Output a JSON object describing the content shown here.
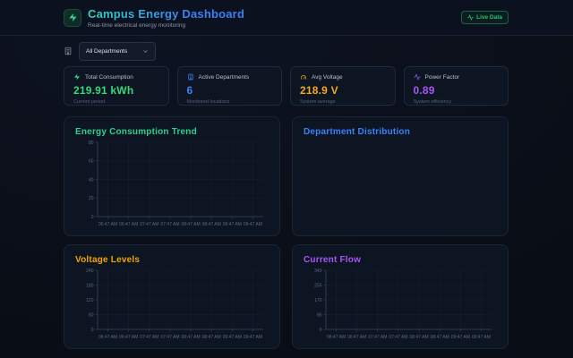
{
  "theme": {
    "page_bg": "#090d15",
    "panel_bg": "#0d1422",
    "panel_border": "#1b2536",
    "axis_color": "#2e3a50",
    "grid_color": "#17202f",
    "tick_text_color": "#5d6a80"
  },
  "header": {
    "title": "Campus Energy Dashboard",
    "subtitle": "Real-time electrical energy monitoring",
    "logo_icon": "lightning-bolt-icon",
    "live_badge": {
      "label": "Live Data",
      "icon": "activity-icon",
      "color": "#22c55e"
    }
  },
  "filter": {
    "icon": "building-icon",
    "dropdown_value": "All Departments"
  },
  "stats": [
    {
      "icon": "lightning-bolt-icon",
      "label": "Total Consumption",
      "value": "219.91 kWh",
      "sub": "Current period",
      "accent": "#34d979"
    },
    {
      "icon": "building-icon",
      "label": "Active Departments",
      "value": "6",
      "sub": "Monitored locations",
      "accent": "#3b82f6"
    },
    {
      "icon": "gauge-icon",
      "label": "Avg Voltage",
      "value": "218.9 V",
      "sub": "System average",
      "accent": "#f5a623"
    },
    {
      "icon": "activity-icon",
      "label": "Power Factor",
      "value": "0.89",
      "sub": "System efficiency",
      "accent": "#a855f7"
    }
  ],
  "chart_data": [
    {
      "type": "line",
      "title": "Energy Consumption Trend",
      "title_color": "#2fd08a",
      "xlabel": "",
      "ylabel": "",
      "ylim": [
        0,
        80
      ],
      "yticks": [
        0,
        20,
        40,
        60,
        80
      ],
      "x": [
        "06:47 AM",
        "06:47 AM",
        "07:47 AM",
        "07:47 AM",
        "08:47 AM",
        "08:47 AM",
        "09:47 AM",
        "09:47 AM"
      ],
      "series": [],
      "grid": true,
      "legend": "none"
    },
    {
      "type": "pie",
      "title": "Department Distribution",
      "title_color": "#3b82f6",
      "series": [],
      "legend": "none"
    },
    {
      "type": "line",
      "title": "Voltage Levels",
      "title_color": "#f0a500",
      "xlabel": "",
      "ylabel": "",
      "ylim": [
        0,
        240
      ],
      "yticks": [
        0,
        60,
        120,
        180,
        240
      ],
      "x": [
        "06:47 AM",
        "06:47 AM",
        "07:47 AM",
        "07:47 AM",
        "08:47 AM",
        "08:47 AM",
        "09:47 AM",
        "09:47 AM"
      ],
      "series": [],
      "grid": true,
      "legend": "none"
    },
    {
      "type": "line",
      "title": "Current Flow",
      "title_color": "#a855f7",
      "xlabel": "",
      "ylabel": "",
      "ylim": [
        0,
        340
      ],
      "yticks": [
        0,
        85,
        170,
        255,
        340
      ],
      "x": [
        "06:47 AM",
        "06:47 AM",
        "07:47 AM",
        "07:47 AM",
        "08:47 AM",
        "08:47 AM",
        "09:47 AM",
        "09:47 AM"
      ],
      "series": [],
      "grid": true,
      "legend": "none"
    }
  ]
}
